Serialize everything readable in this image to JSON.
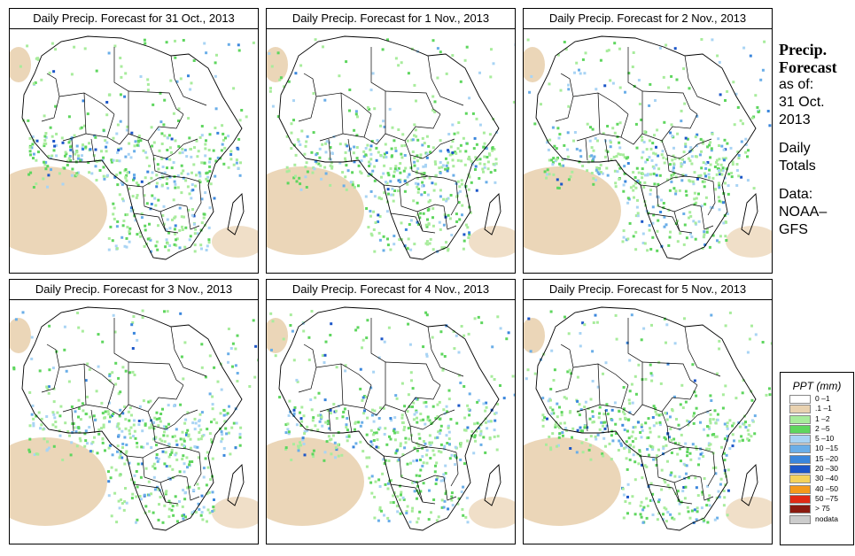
{
  "panels": [
    {
      "title": "Daily Precip. Forecast for  31 Oct., 2013"
    },
    {
      "title": "Daily Precip. Forecast for  1 Nov., 2013"
    },
    {
      "title": "Daily Precip. Forecast for  2 Nov., 2013"
    },
    {
      "title": "Daily Precip. Forecast for  3 Nov., 2013"
    },
    {
      "title": "Daily Precip. Forecast for  4 Nov., 2013"
    },
    {
      "title": "Daily Precip. Forecast for  5 Nov., 2013"
    }
  ],
  "sidebar": {
    "line1": "Precip.",
    "line2": "Forecast",
    "line3": "as of:",
    "line4": "31 Oct.",
    "line5": "2013",
    "line6": "Daily",
    "line7": "Totals",
    "line8": "Data:",
    "line9": "NOAA–",
    "line10": "GFS"
  },
  "legend": {
    "title": "PPT (mm)",
    "items": [
      {
        "label": "0 –1",
        "color": "#ffffff"
      },
      {
        "label": ".1 –1",
        "color": "#e9d2b0"
      },
      {
        "label": "1 –2",
        "color": "#a8ec9c"
      },
      {
        "label": "2 –5",
        "color": "#5ed65e"
      },
      {
        "label": "5 –10",
        "color": "#a9d4f4"
      },
      {
        "label": "10 –15",
        "color": "#6aaee8"
      },
      {
        "label": "15 –20",
        "color": "#3a86dc"
      },
      {
        "label": "20 –30",
        "color": "#1c56c8"
      },
      {
        "label": "30 –40",
        "color": "#f4d25c"
      },
      {
        "label": "40 –50",
        "color": "#f49a1c"
      },
      {
        "label": "50 –75",
        "color": "#e02a14"
      },
      {
        "label": "> 75",
        "color": "#8a1a10"
      },
      {
        "label": "nodata",
        "color": "#cccccc"
      }
    ]
  }
}
